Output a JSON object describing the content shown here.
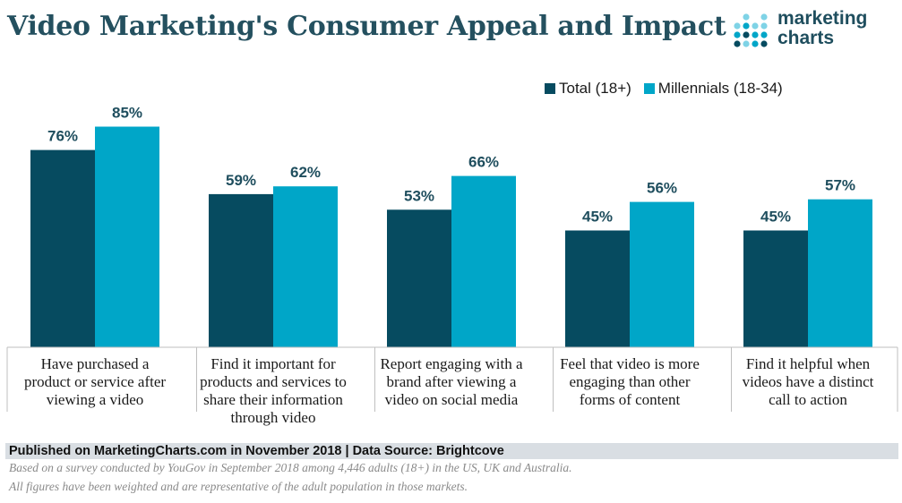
{
  "title": "Video Marketing's Consumer Appeal and Impact",
  "logo": {
    "line1": "marketing",
    "line2": "charts"
  },
  "colors": {
    "total": "#064b60",
    "millennials": "#00a6c8",
    "title": "#24505f"
  },
  "legend": {
    "total": "Total (18+)",
    "millennials": "Millennials (18-34)"
  },
  "chart_data": {
    "type": "bar",
    "title": "Video Marketing's Consumer Appeal and Impact",
    "xlabel": "",
    "ylabel": "",
    "ylim": [
      0,
      100
    ],
    "grid": false,
    "legend_position": "top-right",
    "categories": [
      "Have purchased a product or service after viewing a video",
      "Find it important for products and services to share their information through video",
      "Report engaging with a brand after viewing a video on social media",
      "Feel that video is more engaging than other forms of content",
      "Find it helpful when videos have a distinct call to action"
    ],
    "category_lines": [
      [
        "Have purchased a",
        "product or service after",
        "viewing a video"
      ],
      [
        "Find it important for",
        "products and services to",
        "share their information",
        "through video"
      ],
      [
        "Report engaging with a",
        "brand after viewing a",
        "video on social media"
      ],
      [
        "Feel that video is more",
        "engaging than other",
        "forms of content"
      ],
      [
        "Find it helpful when",
        "videos have a distinct",
        "call to action"
      ]
    ],
    "series": [
      {
        "name": "Total (18+)",
        "values": [
          76,
          59,
          53,
          45,
          45
        ],
        "labels": [
          "76%",
          "59%",
          "53%",
          "45%",
          "45%"
        ]
      },
      {
        "name": "Millennials (18-34)",
        "values": [
          85,
          62,
          66,
          56,
          57
        ],
        "labels": [
          "85%",
          "62%",
          "66%",
          "56%",
          "57%"
        ]
      }
    ]
  },
  "footer": {
    "published": "Published on MarketingCharts.com in November 2018 | Data Source: Brightcove",
    "note1": "Based on a survey conducted by YouGov in September 2018 among 4,446 adults (18+) in the US, UK and Australia.",
    "note2": "All figures have been weighted and are representative of the adult population in those markets."
  }
}
